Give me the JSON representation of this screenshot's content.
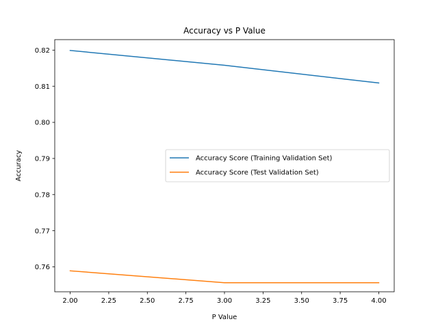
{
  "chart_data": {
    "type": "line",
    "title": "Accuracy vs P Value",
    "xlabel": "P Value",
    "ylabel": "Accuracy",
    "xlim": [
      1.9,
      4.1
    ],
    "ylim": [
      0.7531,
      0.8229
    ],
    "x_ticks": [
      2.0,
      2.25,
      2.5,
      2.75,
      3.0,
      3.25,
      3.5,
      3.75,
      4.0
    ],
    "x_tick_labels": [
      "2.00",
      "2.25",
      "2.50",
      "2.75",
      "3.00",
      "3.25",
      "3.50",
      "3.75",
      "4.00"
    ],
    "y_ticks": [
      0.76,
      0.77,
      0.78,
      0.79,
      0.8,
      0.81,
      0.82
    ],
    "y_tick_labels": [
      "0.76",
      "0.77",
      "0.78",
      "0.79",
      "0.80",
      "0.81",
      "0.82"
    ],
    "grid": false,
    "legend_position": "center-right",
    "series": [
      {
        "name": "Accuracy Score (Training Validation Set)",
        "color": "#1f77b4",
        "x": [
          2,
          3,
          4
        ],
        "y": [
          0.8199,
          0.8158,
          0.8109
        ]
      },
      {
        "name": "Accuracy Score (Test Validation Set)",
        "color": "#ff7f0e",
        "x": [
          2,
          3,
          4
        ],
        "y": [
          0.7589,
          0.7556,
          0.7556
        ]
      }
    ]
  }
}
